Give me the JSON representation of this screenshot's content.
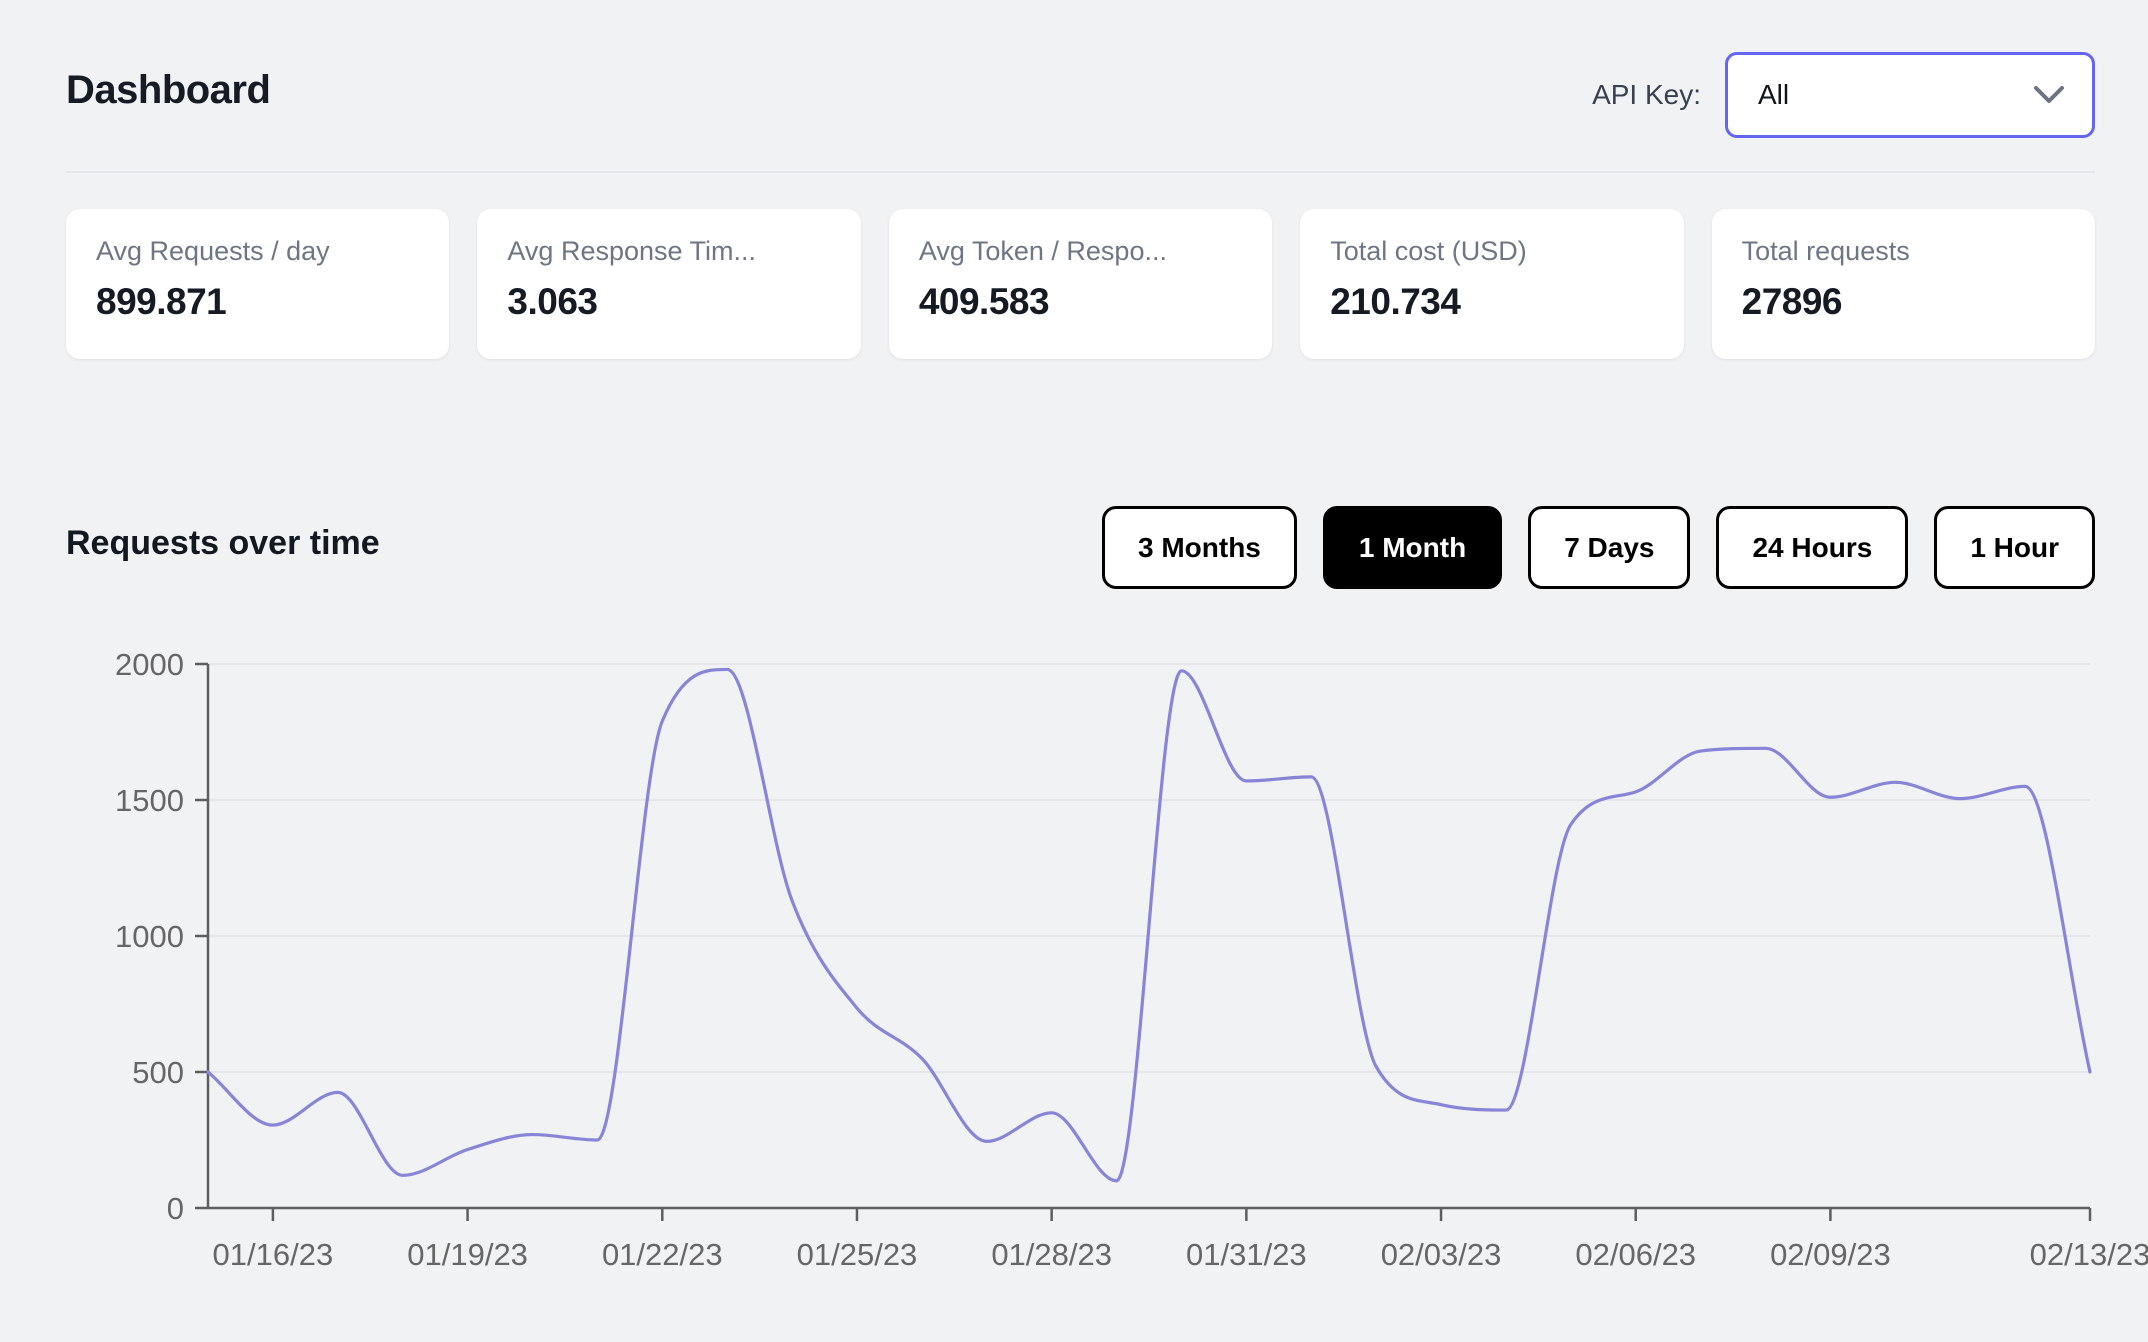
{
  "header": {
    "title": "Dashboard",
    "api_key_label": "API Key:",
    "api_key_value": "All"
  },
  "stats": [
    {
      "label": "Avg Requests / day",
      "value": "899.871"
    },
    {
      "label": "Avg Response Tim...",
      "value": "3.063"
    },
    {
      "label": "Avg Token / Respo...",
      "value": "409.583"
    },
    {
      "label": "Total cost (USD)",
      "value": "210.734"
    },
    {
      "label": "Total requests",
      "value": "27896"
    }
  ],
  "section": {
    "title": "Requests over time",
    "ranges": [
      {
        "label": "3 Months",
        "active": false
      },
      {
        "label": "1 Month",
        "active": true
      },
      {
        "label": "7 Days",
        "active": false
      },
      {
        "label": "24 Hours",
        "active": false
      },
      {
        "label": "1 Hour",
        "active": false
      }
    ]
  },
  "chart_data": {
    "type": "line",
    "title": "Requests over time",
    "x": [
      "01/15/23",
      "01/16/23",
      "01/17/23",
      "01/18/23",
      "01/19/23",
      "01/20/23",
      "01/21/23",
      "01/22/23",
      "01/23/23",
      "01/24/23",
      "01/25/23",
      "01/26/23",
      "01/27/23",
      "01/28/23",
      "01/29/23",
      "01/30/23",
      "01/31/23",
      "02/01/23",
      "02/02/23",
      "02/03/23",
      "02/04/23",
      "02/05/23",
      "02/06/23",
      "02/07/23",
      "02/08/23",
      "02/09/23",
      "02/10/23",
      "02/11/23",
      "02/12/23",
      "02/13/23"
    ],
    "values": [
      500,
      305,
      425,
      120,
      215,
      270,
      250,
      1790,
      1980,
      1130,
      735,
      550,
      245,
      350,
      100,
      1975,
      1570,
      1585,
      520,
      380,
      360,
      1410,
      1530,
      1680,
      1690,
      1510,
      1565,
      1505,
      1550,
      500
    ],
    "x_tick_indices": [
      1,
      4,
      7,
      10,
      13,
      16,
      19,
      22,
      25,
      29
    ],
    "y_ticks": [
      0,
      500,
      1000,
      1500,
      2000
    ],
    "ylim": [
      0,
      2000
    ],
    "xlabel": "",
    "ylabel": "",
    "legend": false,
    "grid": "horizontal",
    "line_color": "#8884d8",
    "axis_color": "#5e5e5e",
    "grid_color": "#e4e5e9"
  },
  "colors": {
    "background": "#f0f2f4",
    "card_background": "#ffffff",
    "accent_indigo": "#6366f1",
    "active_button_bg": "#000000"
  }
}
